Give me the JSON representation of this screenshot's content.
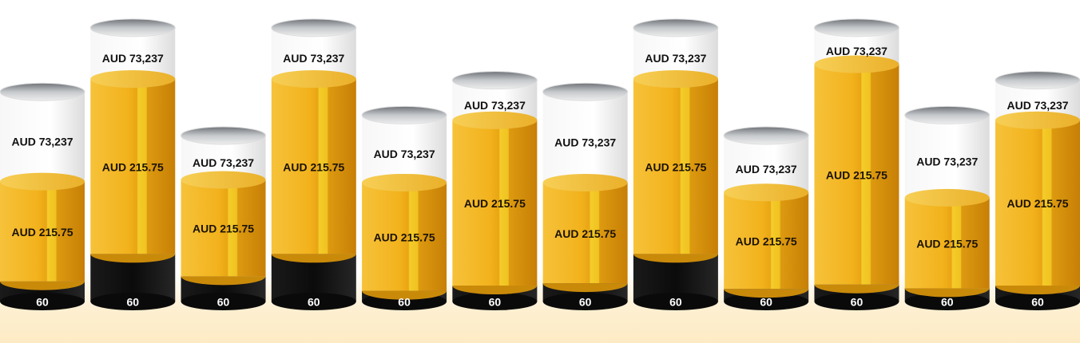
{
  "chart_data": {
    "type": "bar",
    "subtype": "stacked-cylinder",
    "categories": [
      "",
      "",
      "",
      "",
      "",
      "",
      "",
      "",
      "",
      "",
      "",
      ""
    ],
    "series": [
      {
        "values": [
          60,
          60,
          60,
          60,
          60,
          60,
          60,
          60,
          60,
          60,
          60,
          60
        ],
        "labels": [
          "60",
          "60",
          "60",
          "60",
          "60",
          "60",
          "60",
          "60",
          "60",
          "60",
          "60",
          "60"
        ],
        "color": "#111111"
      },
      {
        "values": [
          215.75,
          215.75,
          215.75,
          215.75,
          215.75,
          215.75,
          215.75,
          215.75,
          215.75,
          215.75,
          215.75,
          215.75
        ],
        "labels": [
          "AUD 215.75",
          "AUD 215.75",
          "AUD 215.75",
          "AUD 215.75",
          "AUD 215.75",
          "AUD 215.75",
          "AUD 215.75",
          "AUD 215.75",
          "AUD 215.75",
          "AUD 215.75",
          "AUD 215.75",
          "AUD 215.75"
        ],
        "color": "#f2b418"
      },
      {
        "values": [
          73237,
          73237,
          73237,
          73237,
          73237,
          73237,
          73237,
          73237,
          73237,
          73237,
          73237,
          73237
        ],
        "labels": [
          "AUD 73,237",
          "AUD 73,237",
          "AUD 73,237",
          "AUD 73,237",
          "AUD 73,237",
          "AUD 73,237",
          "AUD 73,237",
          "AUD 73,237",
          "AUD 73,237",
          "AUD 73,237",
          "AUD 73,237",
          "AUD 73,237"
        ],
        "color": "#f4f4f4"
      }
    ],
    "segment_fractions": [
      {
        "black": 0.096,
        "gold": 0.476,
        "white": 0.428
      },
      {
        "black": 0.174,
        "gold": 0.639,
        "white": 0.187
      },
      {
        "black": 0.152,
        "gold": 0.581,
        "white": 0.267
      },
      {
        "black": 0.174,
        "gold": 0.639,
        "white": 0.187
      },
      {
        "black": 0.057,
        "gold": 0.581,
        "white": 0.362
      },
      {
        "black": 0.072,
        "gold": 0.747,
        "white": 0.181
      },
      {
        "black": 0.087,
        "gold": 0.48,
        "white": 0.433
      },
      {
        "black": 0.174,
        "gold": 0.639,
        "white": 0.187
      },
      {
        "black": 0.076,
        "gold": 0.581,
        "white": 0.343
      },
      {
        "black": 0.062,
        "gold": 0.805,
        "white": 0.133
      },
      {
        "black": 0.071,
        "gold": 0.486,
        "white": 0.443
      },
      {
        "black": 0.072,
        "gold": 0.747,
        "white": 0.181
      }
    ],
    "relative_heights": [
      0.72,
      0.94,
      0.57,
      0.94,
      0.64,
      0.76,
      0.72,
      0.94,
      0.57,
      0.94,
      0.64,
      0.76
    ],
    "legend": "none",
    "grid": false
  }
}
